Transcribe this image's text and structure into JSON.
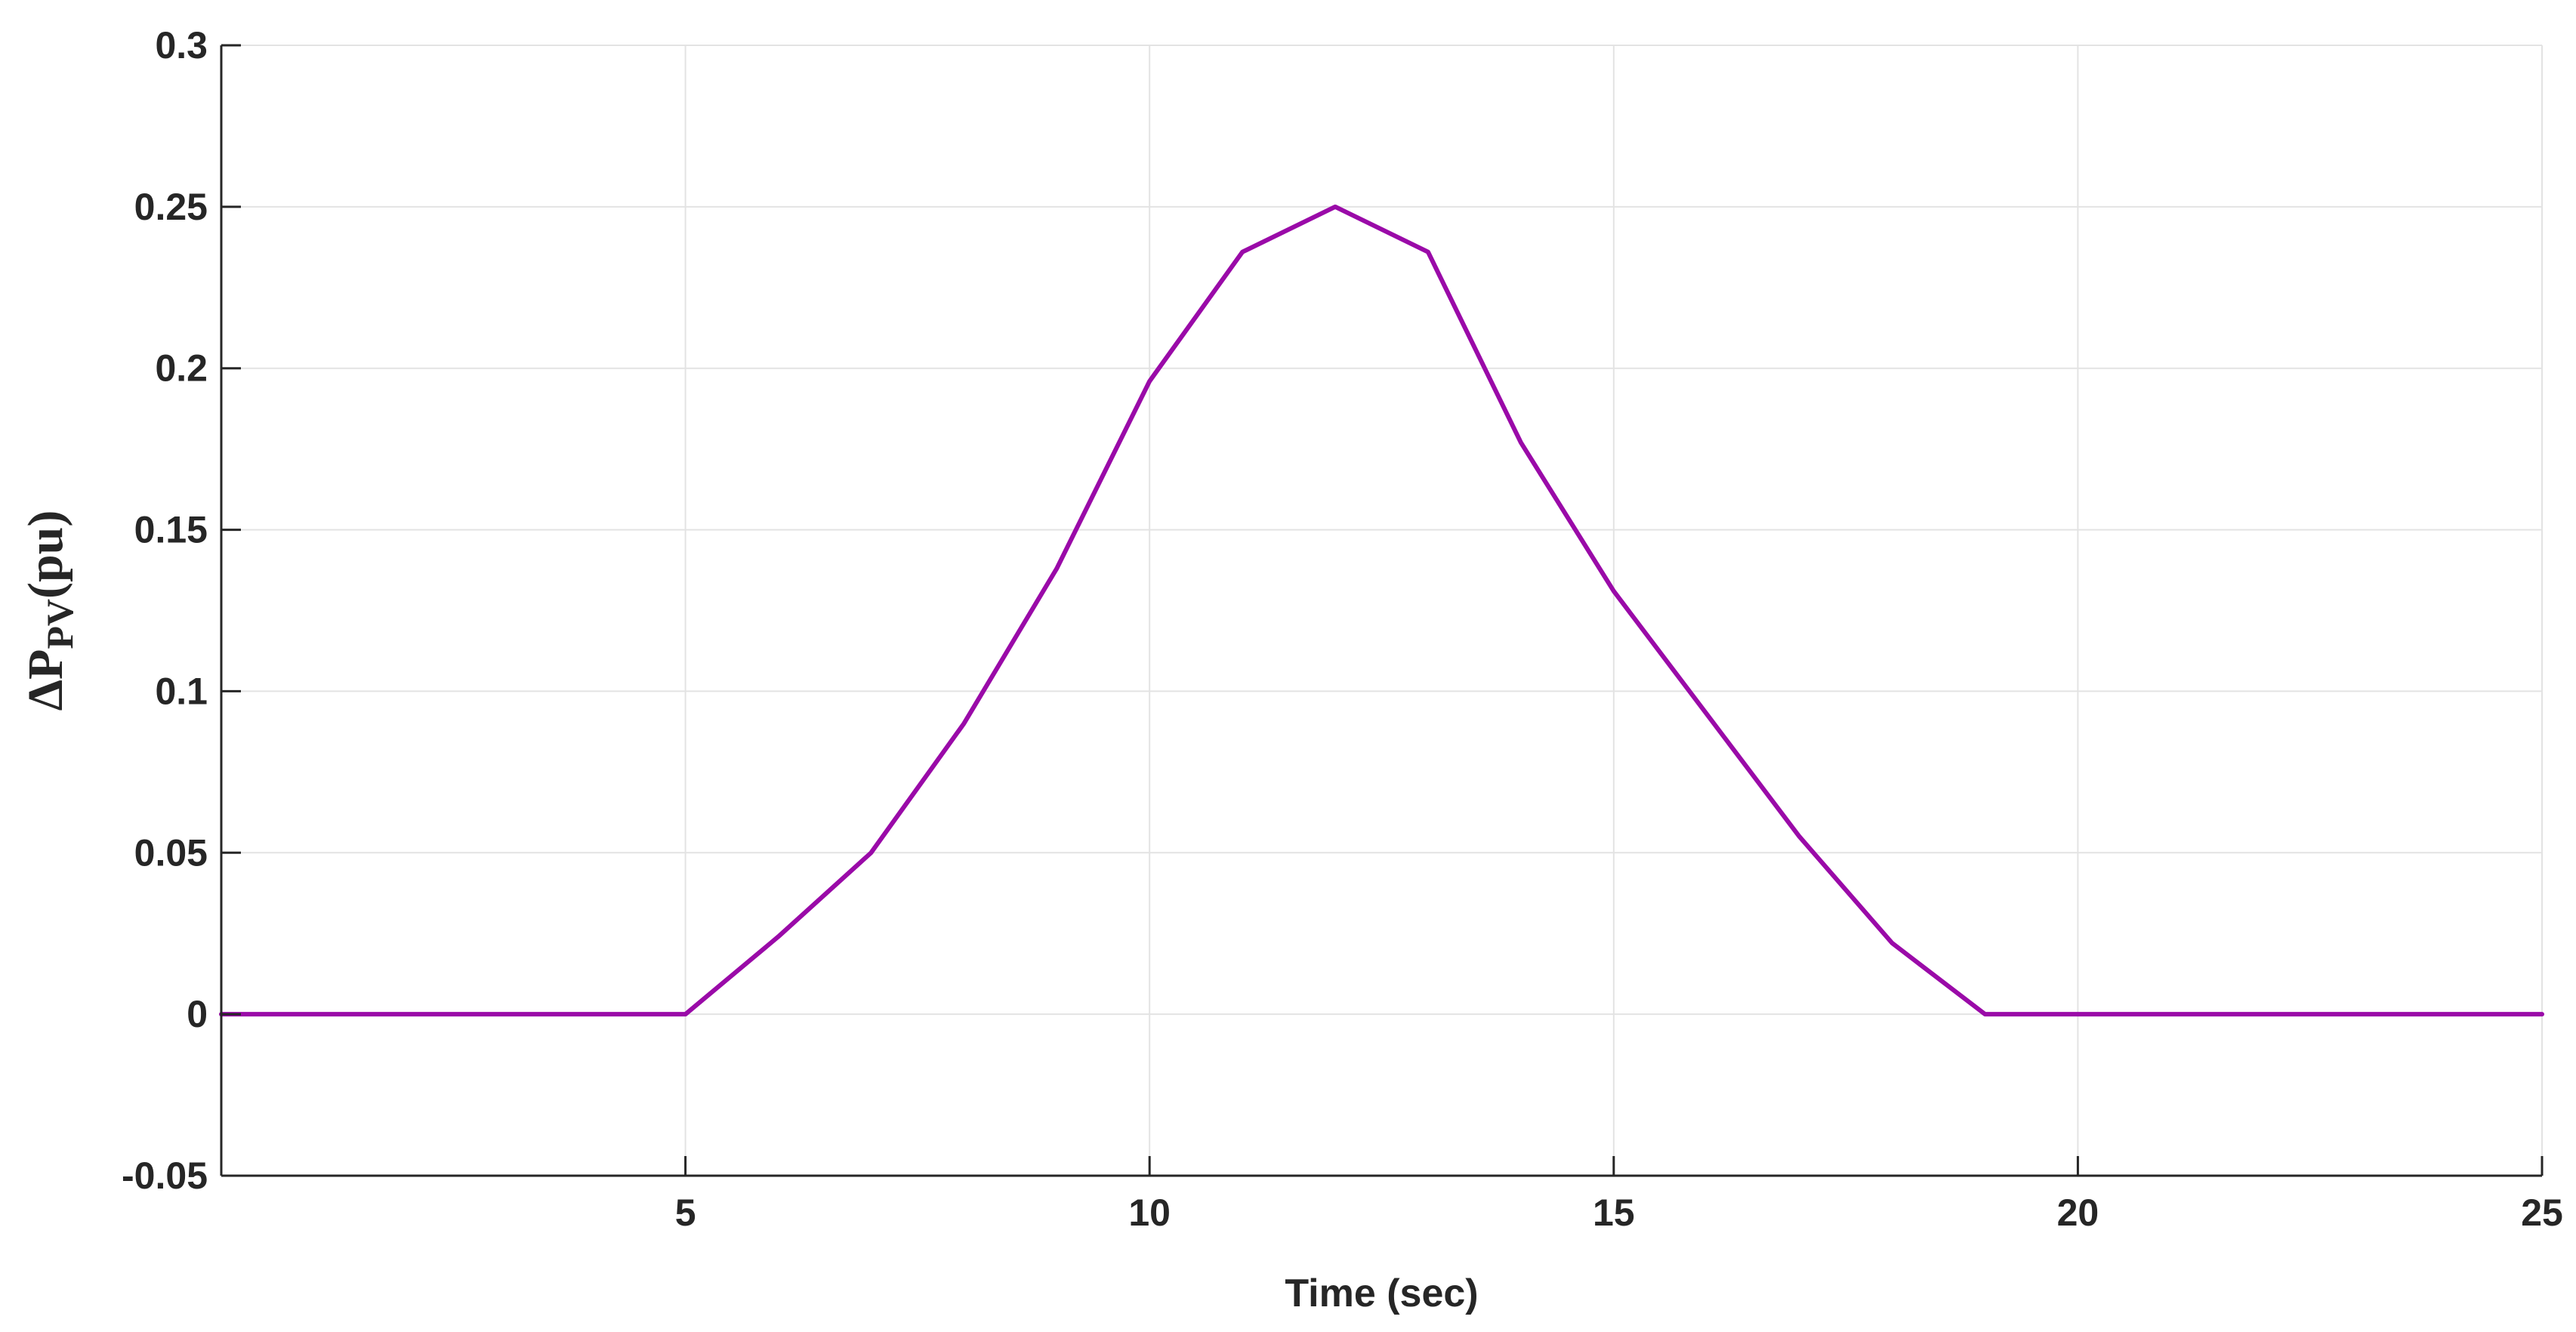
{
  "chart_data": {
    "type": "line",
    "title": "",
    "xlabel": "Time (sec)",
    "ylabel": {
      "main": "ΔP",
      "subscript": "PV",
      "suffix": "(pu)"
    },
    "xlim": [
      0,
      25
    ],
    "ylim": [
      -0.05,
      0.3
    ],
    "xticks": [
      5,
      10,
      15,
      20,
      25
    ],
    "xtick_labels": [
      "5",
      "10",
      "15",
      "20",
      "25"
    ],
    "yticks": [
      -0.05,
      0,
      0.05,
      0.1,
      0.15,
      0.2,
      0.25,
      0.3
    ],
    "ytick_labels": [
      "-0.05",
      "0",
      "0.05",
      "0.1",
      "0.15",
      "0.2",
      "0.25",
      "0.3"
    ],
    "grid": true,
    "legend": "none",
    "series": [
      {
        "color": "#9a0aa8",
        "x": [
          0,
          5,
          6,
          7,
          8,
          9,
          10,
          11,
          12,
          13,
          14,
          15,
          16,
          17,
          18,
          19,
          25
        ],
        "y": [
          0,
          0,
          0.024,
          0.05,
          0.09,
          0.138,
          0.196,
          0.236,
          0.25,
          0.236,
          0.177,
          0.131,
          0.093,
          0.055,
          0.022,
          0,
          0
        ]
      }
    ]
  }
}
